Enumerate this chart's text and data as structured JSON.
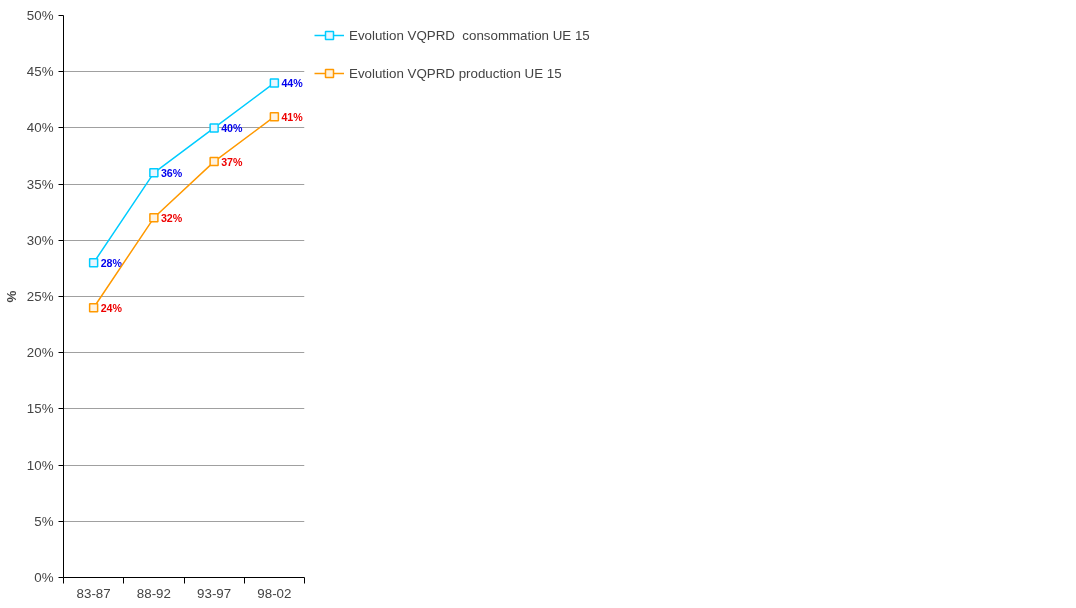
{
  "chart_data": {
    "type": "line",
    "ylabel": "%",
    "categories": [
      "83-87",
      "88-92",
      "93-97",
      "98-02"
    ],
    "series": [
      {
        "name": "Evolution VQPRD  consommation UE 15",
        "color": "#00ccff",
        "values": [
          28,
          36,
          40,
          44
        ],
        "value_labels": [
          "28%",
          "36%",
          "40%",
          "44%"
        ]
      },
      {
        "name": "Evolution VQPRD production UE 15",
        "color": "#ff9900",
        "values": [
          24,
          32,
          37,
          41
        ],
        "value_labels": [
          "24%",
          "32%",
          "37%",
          "41%"
        ]
      }
    ],
    "ylim": [
      0,
      50
    ],
    "yticks": [
      {
        "value": 0,
        "label": "0%"
      },
      {
        "value": 5,
        "label": "5%"
      },
      {
        "value": 10,
        "label": "10%"
      },
      {
        "value": 15,
        "label": "15%"
      },
      {
        "value": 20,
        "label": "20%"
      },
      {
        "value": 25,
        "label": "25%"
      },
      {
        "value": 30,
        "label": "30%"
      },
      {
        "value": 35,
        "label": "35%"
      },
      {
        "value": 40,
        "label": "40%"
      },
      {
        "value": 45,
        "label": "45%"
      },
      {
        "value": 50,
        "label": "50%"
      }
    ],
    "grid": "y",
    "legend": "top right",
    "marker": "square",
    "line_style": "solid"
  }
}
